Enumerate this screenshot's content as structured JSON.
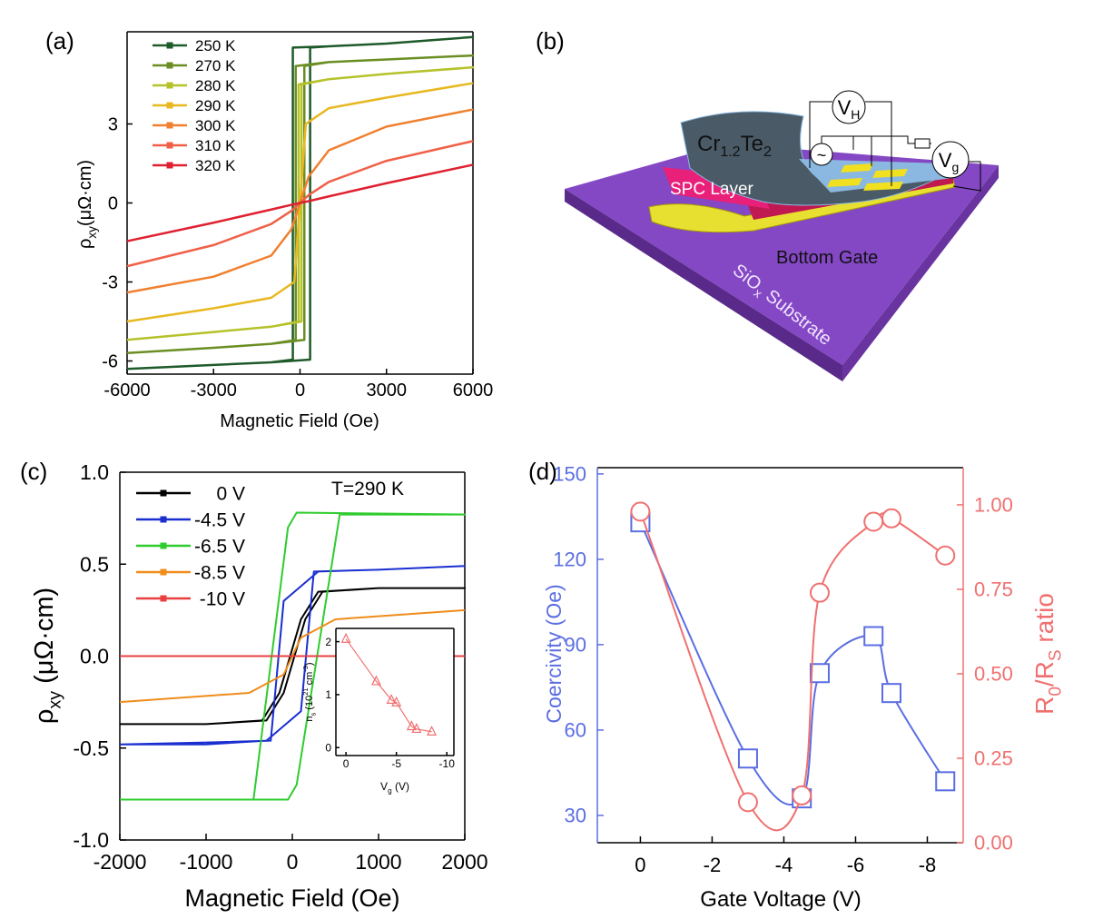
{
  "chart_data": [
    {
      "type": "line",
      "panel": "(a)",
      "xlabel": "Magnetic Field (Oe)",
      "ylabel": [
        {
          "text": "ρ"
        },
        {
          "text": "xy",
          "shift": "sub"
        },
        {
          "text": "(μΩ·cm)"
        }
      ],
      "xlim": [
        -6000,
        6000
      ],
      "ylim": [
        -6.5,
        6.5
      ],
      "xticks": [
        -6000,
        -3000,
        0,
        3000,
        6000
      ],
      "yticks": [
        -6,
        -3,
        0,
        3
      ],
      "legend": "upper left",
      "series": [
        {
          "name": "250 K",
          "color": "#1e5a2a",
          "x": [
            -6000,
            -3000,
            -1000,
            350,
            350,
            1000,
            3000,
            6000,
            3000,
            1000,
            -250,
            -250,
            -1000,
            -3000,
            -6000
          ],
          "values": [
            -6.3,
            -6.15,
            -6.05,
            -5.95,
            5.9,
            5.95,
            6.05,
            6.3,
            6.05,
            5.95,
            5.9,
            -5.95,
            -6.05,
            -6.15,
            -6.3
          ]
        },
        {
          "name": "270 K",
          "color": "#6b8e23",
          "x": [
            -6000,
            -3000,
            -1000,
            150,
            150,
            1000,
            3000,
            6000,
            3000,
            1000,
            -150,
            -150,
            -1000,
            -3000,
            -6000
          ],
          "values": [
            -5.7,
            -5.5,
            -5.35,
            -5.2,
            5.2,
            5.35,
            5.45,
            5.6,
            5.45,
            5.35,
            5.2,
            -5.2,
            -5.35,
            -5.5,
            -5.7
          ]
        },
        {
          "name": "280 K",
          "color": "#b5c22a",
          "x": [
            -6000,
            -3000,
            -1000,
            50,
            50,
            1000,
            3000,
            6000,
            3000,
            1000,
            -50,
            -50,
            -1000,
            -3000,
            -6000
          ],
          "values": [
            -5.2,
            -4.9,
            -4.7,
            -4.5,
            4.5,
            4.7,
            4.9,
            5.15,
            4.9,
            4.7,
            4.5,
            -4.5,
            -4.7,
            -4.9,
            -5.2
          ]
        },
        {
          "name": "290 K",
          "color": "#e8b820",
          "x": [
            -6000,
            -3000,
            -1000,
            -200,
            0,
            200,
            1000,
            3000,
            6000
          ],
          "values": [
            -4.5,
            -4.0,
            -3.6,
            -3.0,
            0,
            3.0,
            3.6,
            4.0,
            4.55
          ]
        },
        {
          "name": "300 K",
          "color": "#f08030",
          "x": [
            -6000,
            -3000,
            -1000,
            -300,
            0,
            300,
            1000,
            3000,
            6000
          ],
          "values": [
            -3.4,
            -2.8,
            -2.0,
            -1.0,
            0,
            1.0,
            2.0,
            2.9,
            3.55
          ]
        },
        {
          "name": "310 K",
          "color": "#f06048",
          "x": [
            -6000,
            -3000,
            -1000,
            -300,
            0,
            300,
            1000,
            3000,
            6000
          ],
          "values": [
            -2.4,
            -1.6,
            -0.8,
            -0.3,
            0,
            0.3,
            0.8,
            1.6,
            2.35
          ]
        },
        {
          "name": "320 K",
          "color": "#e02030",
          "x": [
            -6000,
            -3000,
            -1000,
            -300,
            0,
            300,
            1000,
            3000,
            6000
          ],
          "values": [
            -1.45,
            -0.75,
            -0.25,
            -0.07,
            0,
            0.07,
            0.25,
            0.75,
            1.45
          ]
        }
      ]
    },
    {
      "type": "line",
      "panel": "(c)",
      "xlabel": "Magnetic Field (Oe)",
      "ylabel": [
        {
          "text": "ρ"
        },
        {
          "text": "xy",
          "shift": "sub"
        },
        {
          "text": "  (μΩ·cm)"
        }
      ],
      "annotation": "T=290 K",
      "xlim": [
        -2000,
        2000
      ],
      "ylim": [
        -1,
        1
      ],
      "xticks": [
        -2000,
        -1000,
        0,
        1000,
        2000
      ],
      "yticks": [
        {
          "value": -1,
          "label": "-1.0"
        },
        {
          "value": -0.5,
          "label": "-0.5"
        },
        {
          "value": 0,
          "label": "0.0"
        },
        {
          "value": 0.5,
          "label": "0.5"
        },
        {
          "value": 1,
          "label": "1.0"
        }
      ],
      "legend": "upper left",
      "series": [
        {
          "name": "0 V",
          "color": "#000000",
          "x": [
            -2000,
            -1000,
            -300,
            -100,
            150,
            350,
            1000,
            2000,
            1000,
            300,
            100,
            -150,
            -350,
            -1000,
            -2000
          ],
          "values": [
            -0.37,
            -0.37,
            -0.35,
            -0.2,
            0.2,
            0.35,
            0.37,
            0.37,
            0.37,
            0.35,
            0.2,
            -0.2,
            -0.35,
            -0.37,
            -0.37
          ]
        },
        {
          "name": "-4.5 V",
          "color": "#1a2ed0",
          "x": [
            -2000,
            -1000,
            -300,
            100,
            250,
            1000,
            2000,
            1000,
            300,
            -100,
            -250,
            -1000,
            -2000
          ],
          "values": [
            -0.48,
            -0.48,
            -0.46,
            -0.3,
            0.46,
            0.47,
            0.49,
            0.47,
            0.46,
            0.3,
            -0.46,
            -0.47,
            -0.48
          ]
        },
        {
          "name": "-6.5 V",
          "color": "#2ecc2e",
          "x": [
            -2000,
            -50,
            50,
            550,
            2000,
            50,
            -50,
            -450,
            -2000
          ],
          "values": [
            -0.78,
            -0.78,
            -0.7,
            0.77,
            0.77,
            0.78,
            0.7,
            -0.78,
            -0.78
          ]
        },
        {
          "name": "-8.5 V",
          "color": "#f08c1a",
          "x": [
            -2000,
            -500,
            -100,
            100,
            500,
            2000
          ],
          "values": [
            -0.25,
            -0.2,
            -0.1,
            0.1,
            0.2,
            0.25
          ]
        },
        {
          "name": "-10 V",
          "color": "#e84040",
          "x": [
            -2000,
            0,
            2000
          ],
          "values": [
            0,
            0,
            0
          ]
        }
      ]
    },
    {
      "type": "line",
      "panel": "(d)",
      "xlabel": "Gate Voltage (V)",
      "ylabel": "Coercivity (Oe)",
      "y2label": [
        {
          "text": "R"
        },
        {
          "text": "0",
          "shift": "sub"
        },
        {
          "text": "/R"
        },
        {
          "text": "S",
          "shift": "sub"
        },
        {
          "text": " ratio"
        }
      ],
      "xlim": [
        1.2,
        -9
      ],
      "ylim": [
        20.4,
        152.2
      ],
      "y2lim": [
        0,
        1.11
      ],
      "xticks": [
        0,
        -2,
        -4,
        -6,
        -8
      ],
      "yticks": [
        30,
        60,
        90,
        120,
        150
      ],
      "y2ticks": [
        {
          "value": 0,
          "label": "0.00"
        },
        {
          "value": 0.25,
          "label": "0.25"
        },
        {
          "value": 0.5,
          "label": "0.50"
        },
        {
          "value": 0.75,
          "label": "0.75"
        },
        {
          "value": 1,
          "label": "1.00"
        }
      ],
      "ycolor": "#5b6ee1",
      "y2color": "#f07070",
      "smooth": true,
      "series": [
        {
          "color": "#5b6ee1",
          "marker": "square",
          "x": [
            0,
            -3,
            -4.5,
            -5,
            -6.5,
            -7,
            -8.5
          ],
          "values": [
            133,
            50,
            36,
            80,
            93,
            73,
            42
          ]
        },
        {
          "color": "#f07070",
          "marker": "circle",
          "axis": "y2",
          "x": [
            0,
            -3,
            -4.5,
            -5,
            -6.5,
            -7,
            -8.5
          ],
          "values": [
            0.98,
            0.12,
            0.14,
            0.74,
            0.95,
            0.96,
            0.85
          ]
        }
      ]
    },
    {
      "type": "line",
      "xlabel": [
        {
          "text": "V"
        },
        {
          "text": "g",
          "shift": "sub"
        },
        {
          "text": " (V)"
        }
      ],
      "ylabel": [
        {
          "text": "n"
        },
        {
          "text": "s",
          "shift": "sub"
        },
        {
          "text": " (10"
        },
        {
          "text": "21",
          "shift": "sup"
        },
        {
          "text": " cm"
        },
        {
          "text": "-3",
          "shift": "sup"
        },
        {
          "text": ")"
        }
      ],
      "xlim": [
        1,
        -10.7
      ],
      "ylim": [
        -0.15,
        2.25
      ],
      "xticks": [
        0,
        -5,
        -10
      ],
      "yticks": [
        0,
        1,
        2
      ],
      "series": [
        {
          "color": "#f07070",
          "marker": "triangle",
          "x": [
            0,
            -3,
            -4.5,
            -5,
            -6.5,
            -7,
            -8.5
          ],
          "values": [
            2.05,
            1.25,
            0.9,
            0.85,
            0.4,
            0.35,
            0.3
          ]
        }
      ]
    }
  ],
  "diagram": {
    "panel": "(b)",
    "material": [
      {
        "text": "Cr"
      },
      {
        "text": "1.2",
        "shift": "sub"
      },
      {
        "text": "Te"
      },
      {
        "text": "2",
        "shift": "sub"
      }
    ],
    "spc": "SPC Layer",
    "gate": "Bottom Gate",
    "substrate": [
      {
        "text": "SiO"
      },
      {
        "text": "x",
        "shift": "sub"
      },
      {
        "text": " Substrate"
      }
    ],
    "hall": [
      {
        "text": "V"
      },
      {
        "text": "H",
        "shift": "sub"
      }
    ],
    "gate_voltage": [
      {
        "text": "V"
      },
      {
        "text": "g",
        "shift": "sub"
      }
    ],
    "source": "~"
  }
}
